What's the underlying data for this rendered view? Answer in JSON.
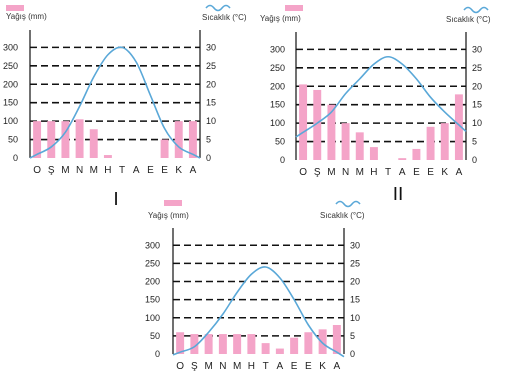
{
  "legend": {
    "precip_label": "Yağış (mm)",
    "temp_label": "Sıcaklık (°C)"
  },
  "colors": {
    "bar": "#f4a4c8",
    "line": "#5aa8d8",
    "grid": "#111111",
    "axis": "#111111"
  },
  "icons": {
    "precip": "pink-rectangle-swatch",
    "temp": "blue-wave-swatch"
  },
  "chart_data": [
    {
      "type": "bar",
      "id": "I",
      "roman_label": "I",
      "categories": [
        "O",
        "Ş",
        "M",
        "N",
        "M",
        "H",
        "T",
        "A",
        "E",
        "E",
        "K",
        "A"
      ],
      "y_left_label": "Yağış (mm)",
      "y_right_label": "Sıcaklık (°C)",
      "y_left_ticks": [
        0,
        50,
        100,
        150,
        200,
        250,
        300
      ],
      "y_right_ticks": [
        0,
        5,
        10,
        15,
        20,
        25,
        30
      ],
      "ylim_left": [
        0,
        320
      ],
      "ylim_right": [
        0,
        32
      ],
      "grid": true,
      "series": [
        {
          "kind": "bar",
          "values": [
            100,
            100,
            100,
            105,
            78,
            8,
            0,
            0,
            0,
            50,
            100,
            100
          ]
        },
        {
          "kind": "line",
          "values": [
            1,
            3,
            7,
            14,
            22,
            28,
            30,
            26,
            17,
            8,
            3,
            1
          ]
        }
      ]
    },
    {
      "type": "bar",
      "id": "II",
      "roman_label": "II",
      "categories": [
        "O",
        "Ş",
        "M",
        "N",
        "M",
        "H",
        "T",
        "A",
        "E",
        "E",
        "K",
        "A"
      ],
      "y_left_label": "Yağış (mm)",
      "y_right_label": "Sıcaklık (°C)",
      "y_left_ticks": [
        0,
        50,
        100,
        150,
        200,
        250,
        300
      ],
      "y_right_ticks": [
        0,
        5,
        10,
        15,
        20,
        25,
        30
      ],
      "ylim_left": [
        0,
        320
      ],
      "ylim_right": [
        0,
        32
      ],
      "grid": true,
      "series": [
        {
          "kind": "bar",
          "values": [
            205,
            190,
            150,
            100,
            75,
            35,
            0,
            5,
            30,
            90,
            100,
            178
          ]
        },
        {
          "kind": "line",
          "values": [
            7.5,
            10,
            13,
            18,
            22,
            26,
            28,
            26,
            22,
            17,
            13,
            9.5
          ]
        }
      ]
    },
    {
      "type": "bar",
      "id": "III",
      "roman_label": "",
      "categories": [
        "O",
        "Ş",
        "M",
        "N",
        "M",
        "H",
        "T",
        "A",
        "E",
        "E",
        "K",
        "A"
      ],
      "y_left_label": "Yağış (mm)",
      "y_right_label": "Sıcaklık (°C)",
      "y_left_ticks": [
        0,
        50,
        100,
        150,
        200,
        250,
        300
      ],
      "y_right_ticks": [
        0,
        5,
        10,
        15,
        20,
        25,
        30
      ],
      "ylim_left": [
        0,
        320
      ],
      "ylim_right": [
        0,
        32
      ],
      "grid": true,
      "series": [
        {
          "kind": "bar",
          "values": [
            60,
            55,
            55,
            55,
            55,
            55,
            30,
            15,
            45,
            60,
            68,
            80
          ]
        },
        {
          "kind": "line",
          "values": [
            0.5,
            2,
            6,
            11,
            17,
            22,
            24,
            21,
            15,
            8,
            3,
            0.5
          ]
        }
      ]
    }
  ]
}
